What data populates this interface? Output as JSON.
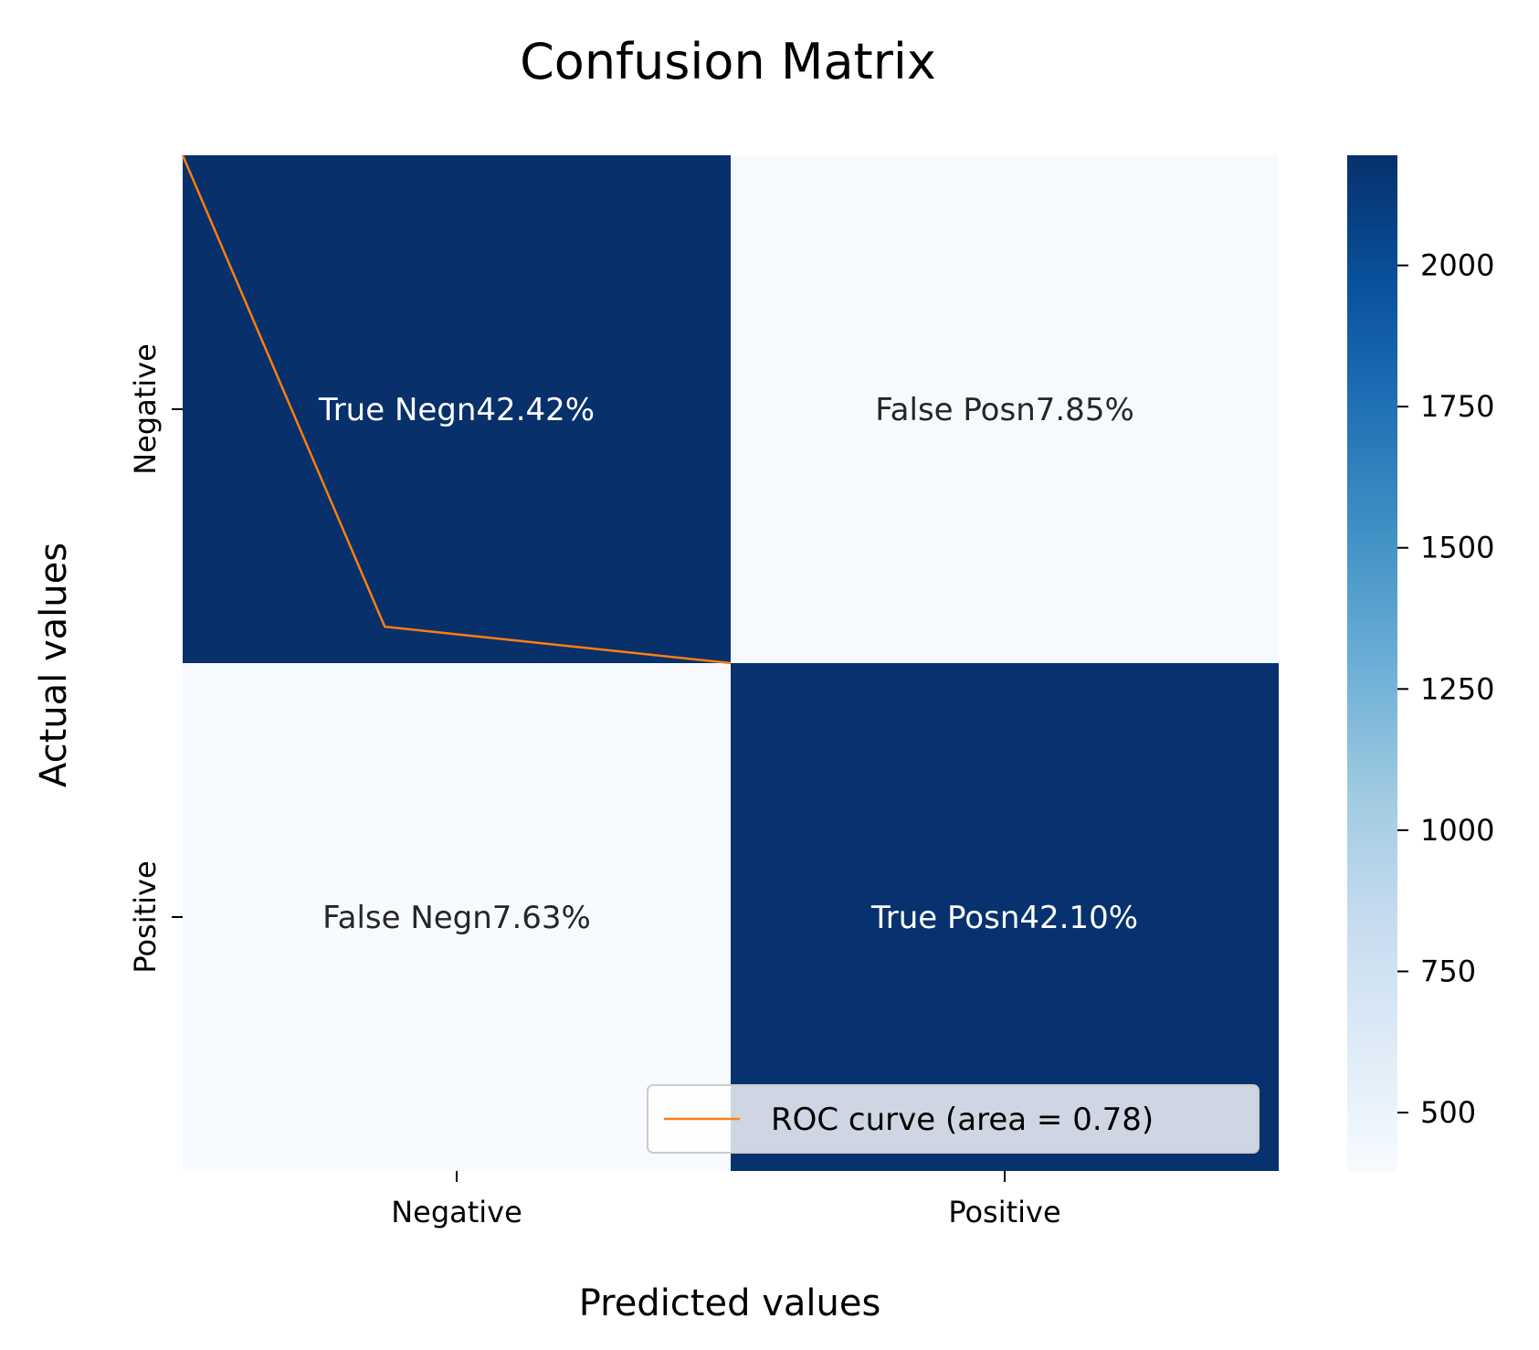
{
  "chart_data": {
    "type": "heatmap",
    "title": "Confusion Matrix",
    "xlabel": "Predicted values",
    "ylabel": "Actual values",
    "x_categories": [
      "Negative",
      "Positive"
    ],
    "y_categories": [
      "Negative",
      "Positive"
    ],
    "cells": [
      [
        {
          "text": "True Negn42.42%",
          "value": 2195
        },
        {
          "text": "False Posn7.85%",
          "value": 406
        }
      ],
      [
        {
          "text": "False Negn7.63%",
          "value": 395
        },
        {
          "text": "True Posn42.10%",
          "value": 2178
        }
      ]
    ],
    "colorbar": {
      "min": 395,
      "max": 2195,
      "ticks": [
        500,
        750,
        1000,
        1250,
        1500,
        1750,
        2000
      ],
      "tick_labels": [
        "500",
        "750",
        "1000",
        "1250",
        "1500",
        "1750",
        "2000"
      ],
      "colormap": "Blues"
    },
    "roc_curve": {
      "label": "ROC curve (area = 0.78)",
      "color": "#ff7f0e",
      "x": [
        0.0,
        0.1844,
        0.5
      ],
      "y": [
        0.0,
        0.9283,
        1.0
      ]
    },
    "legend_position": "lower right"
  }
}
